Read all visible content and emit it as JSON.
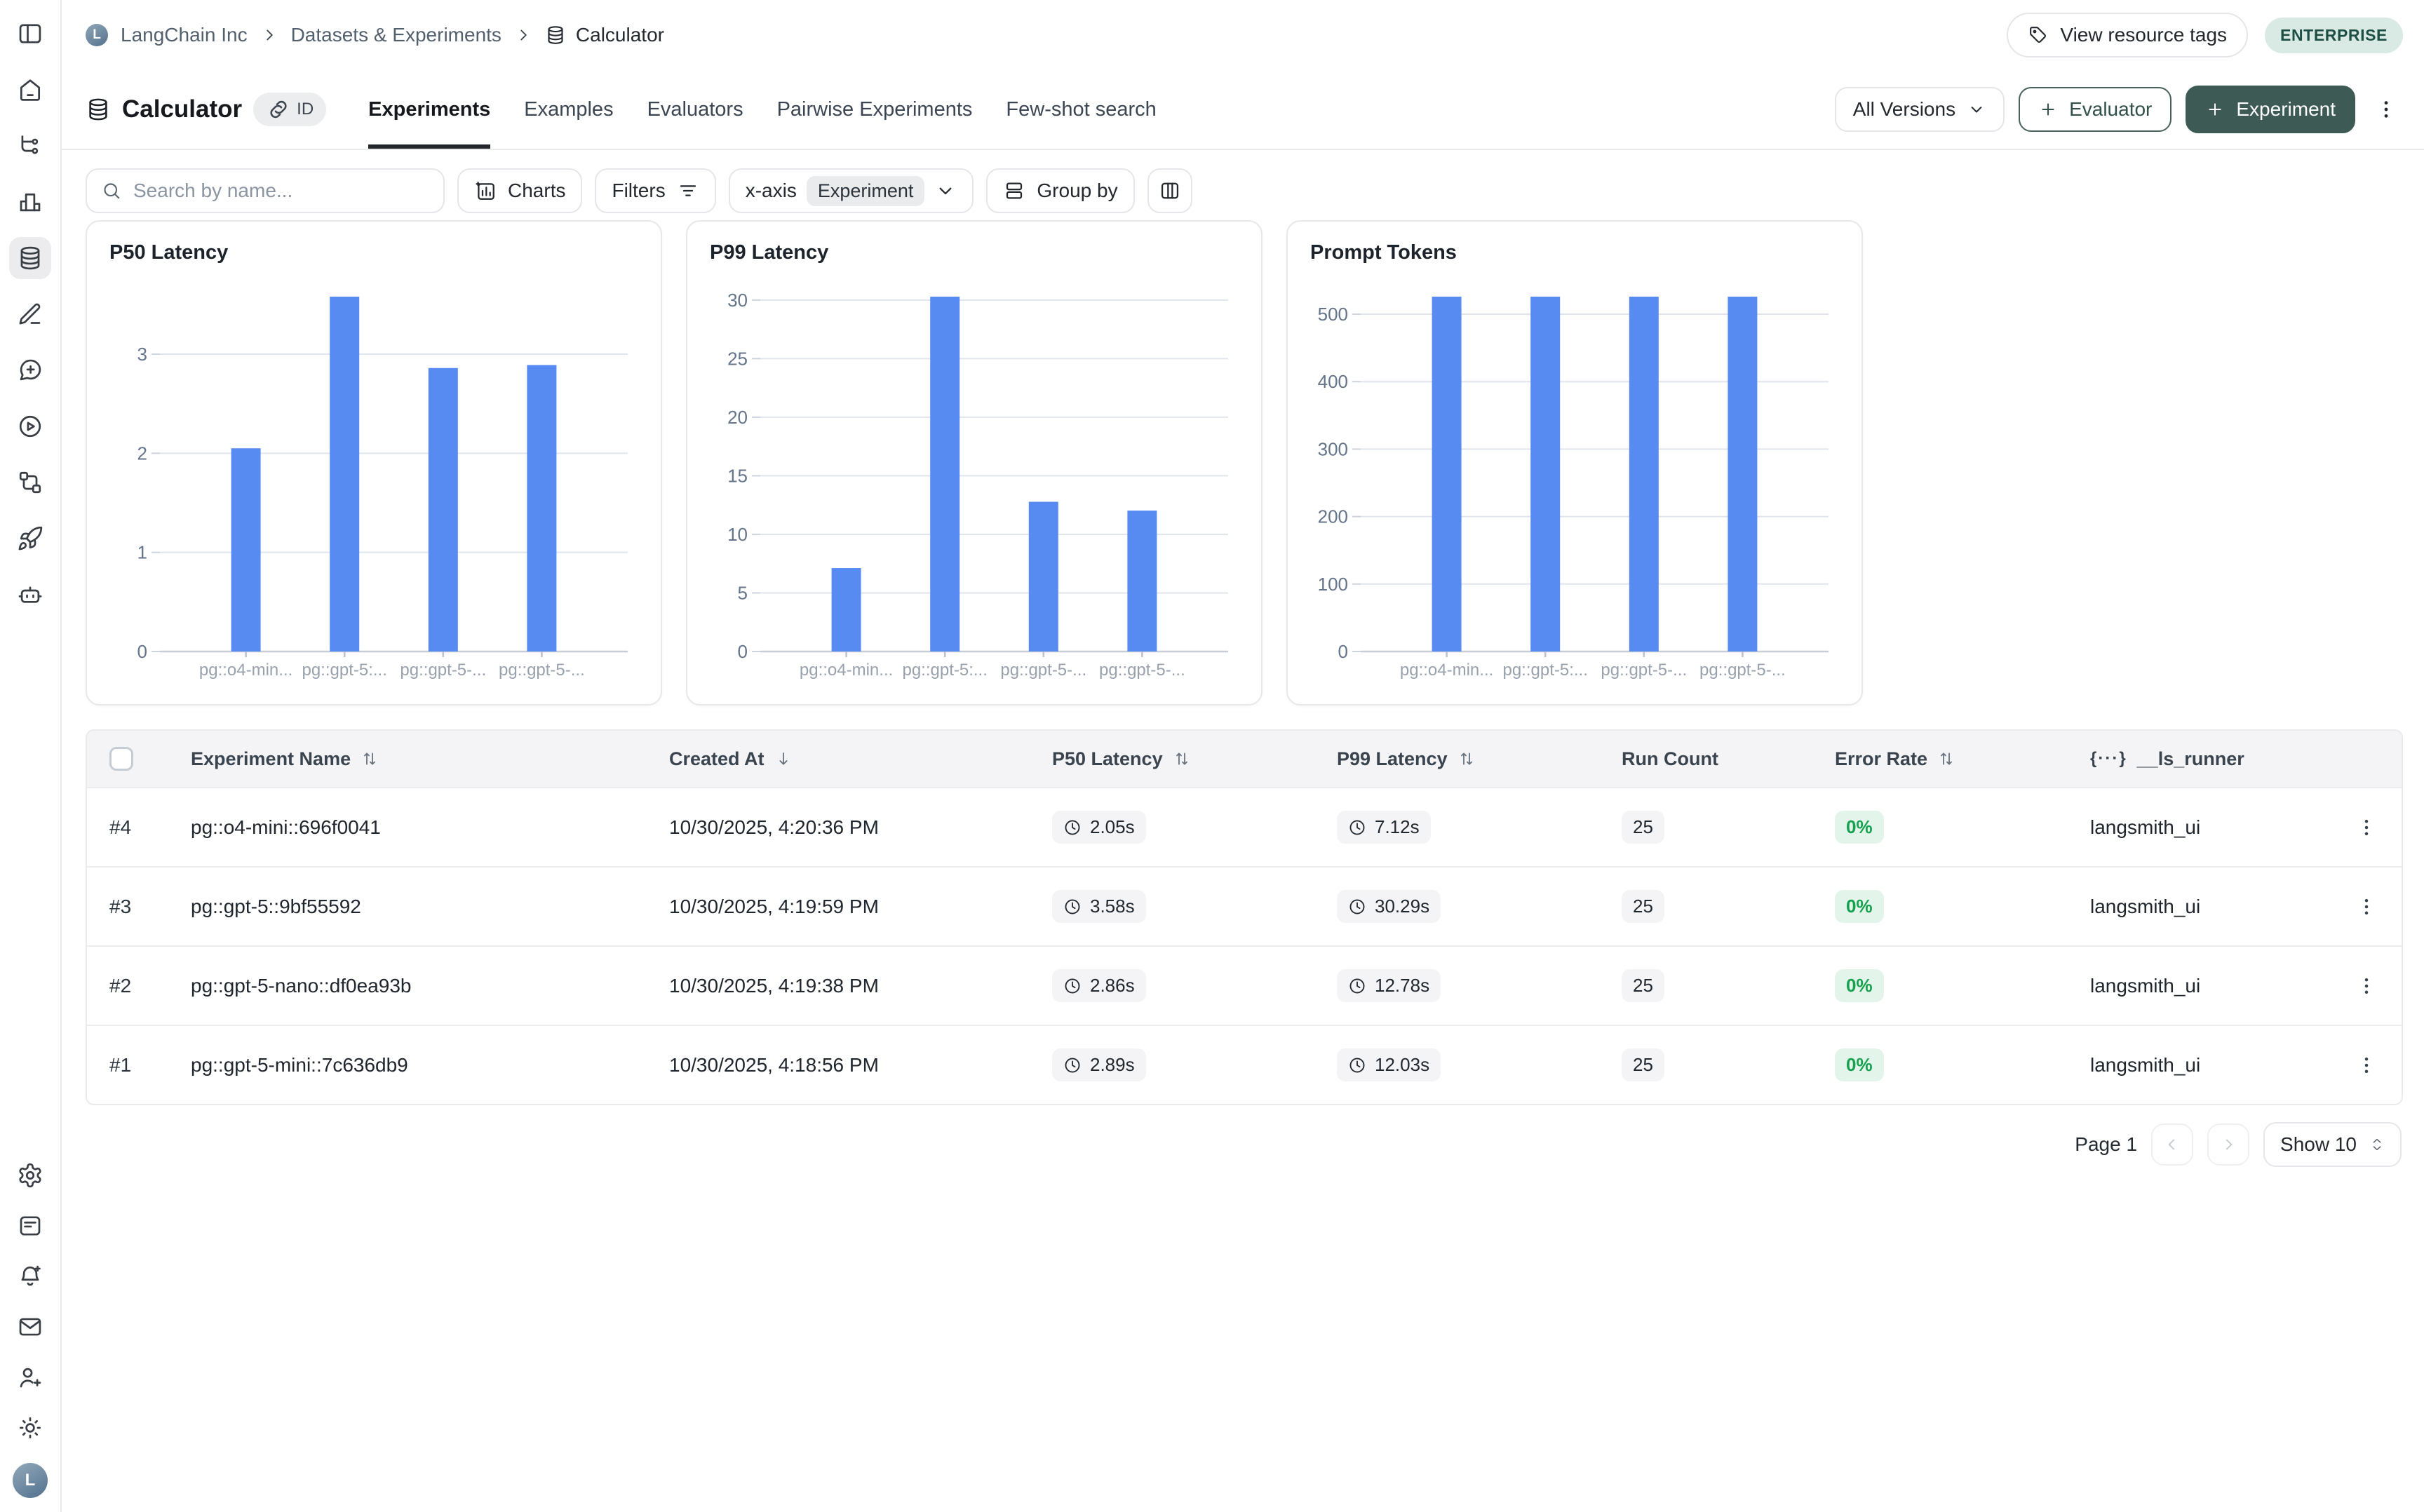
{
  "colors": {
    "bar": "#578bf2",
    "grid": "#e0e5ed",
    "axis_line": "#c6cdd6",
    "tick_label": "#64748b",
    "cat_label": "#98a1ac",
    "accent_teal": "#3e5a54",
    "green_text": "#15a14e",
    "green_bg": "#e3f5ea"
  },
  "sidebar": {
    "top_icons": [
      "panel-left",
      "home",
      "trace",
      "monitor",
      "database",
      "annotate",
      "message-plus",
      "play-circle",
      "workflow",
      "rocket",
      "bot"
    ],
    "active_icon": "database",
    "bottom_icons": [
      "settings",
      "changelog",
      "bell-plus",
      "mail",
      "user-plus",
      "sun"
    ],
    "avatar_initial": "L"
  },
  "breadcrumb": {
    "org_initial": "L",
    "items": [
      "LangChain Inc",
      "Datasets & Experiments",
      "Calculator"
    ]
  },
  "topbar_right": {
    "view_resource_tags": "View resource tags",
    "plan_badge": "ENTERPRISE"
  },
  "title": {
    "name": "Calculator",
    "id_chip": "ID"
  },
  "tabs": [
    {
      "label": "Experiments",
      "active": true
    },
    {
      "label": "Examples",
      "active": false
    },
    {
      "label": "Evaluators",
      "active": false
    },
    {
      "label": "Pairwise Experiments",
      "active": false
    },
    {
      "label": "Few-shot search",
      "active": false
    }
  ],
  "actions": {
    "versions": "All Versions",
    "evaluator": "Evaluator",
    "experiment": "Experiment"
  },
  "toolbar": {
    "search_placeholder": "Search by name...",
    "charts": "Charts",
    "filters": "Filters",
    "xaxis_label": "x-axis",
    "xaxis_value": "Experiment",
    "group_by": "Group by"
  },
  "chart_data": [
    {
      "type": "bar",
      "title": "P50 Latency",
      "categories": [
        "pg::o4-min...",
        "pg::gpt-5:...",
        "pg::gpt-5-...",
        "pg::gpt-5-..."
      ],
      "values": [
        2.05,
        3.58,
        2.86,
        2.89
      ],
      "yticks": [
        0,
        1,
        2,
        3
      ],
      "ymax": 3.58,
      "xlabel": "",
      "ylabel": "",
      "grid": true,
      "legend": "none"
    },
    {
      "type": "bar",
      "title": "P99 Latency",
      "categories": [
        "pg::o4-min...",
        "pg::gpt-5:...",
        "pg::gpt-5-...",
        "pg::gpt-5-..."
      ],
      "values": [
        7.12,
        30.29,
        12.78,
        12.03
      ],
      "yticks": [
        0,
        5,
        10,
        15,
        20,
        25,
        30
      ],
      "ymax": 30.29,
      "xlabel": "",
      "ylabel": "",
      "grid": true,
      "legend": "none"
    },
    {
      "type": "bar",
      "title": "Prompt Tokens",
      "categories": [
        "pg::o4-min...",
        "pg::gpt-5:...",
        "pg::gpt-5-...",
        "pg::gpt-5-..."
      ],
      "values": [
        526,
        526,
        526,
        526
      ],
      "yticks": [
        0,
        100,
        200,
        300,
        400,
        500
      ],
      "ymax": 526,
      "xlabel": "",
      "ylabel": "",
      "grid": true,
      "legend": "none"
    }
  ],
  "table": {
    "columns": [
      {
        "label": "",
        "sort": "none"
      },
      {
        "label": "Experiment Name",
        "sort": "updown"
      },
      {
        "label": "Created At",
        "sort": "down"
      },
      {
        "label": "P50 Latency",
        "sort": "updown"
      },
      {
        "label": "P99 Latency",
        "sort": "updown"
      },
      {
        "label": "Run Count",
        "sort": "none"
      },
      {
        "label": "Error Rate",
        "sort": "updown"
      },
      {
        "label": "__ls_runner",
        "sort": "braces"
      },
      {
        "label": "",
        "sort": "none"
      }
    ],
    "rows": [
      {
        "index": "#4",
        "name": "pg::o4-mini::696f0041",
        "created": "10/30/2025, 4:20:36 PM",
        "p50": "2.05s",
        "p99": "7.12s",
        "run_count": "25",
        "error_rate": "0%",
        "runner": "langsmith_ui"
      },
      {
        "index": "#3",
        "name": "pg::gpt-5::9bf55592",
        "created": "10/30/2025, 4:19:59 PM",
        "p50": "3.58s",
        "p99": "30.29s",
        "run_count": "25",
        "error_rate": "0%",
        "runner": "langsmith_ui"
      },
      {
        "index": "#2",
        "name": "pg::gpt-5-nano::df0ea93b",
        "created": "10/30/2025, 4:19:38 PM",
        "p50": "2.86s",
        "p99": "12.78s",
        "run_count": "25",
        "error_rate": "0%",
        "runner": "langsmith_ui"
      },
      {
        "index": "#1",
        "name": "pg::gpt-5-mini::7c636db9",
        "created": "10/30/2025, 4:18:56 PM",
        "p50": "2.89s",
        "p99": "12.03s",
        "run_count": "25",
        "error_rate": "0%",
        "runner": "langsmith_ui"
      }
    ]
  },
  "pagination": {
    "page_label": "Page 1",
    "show_label": "Show 10"
  }
}
